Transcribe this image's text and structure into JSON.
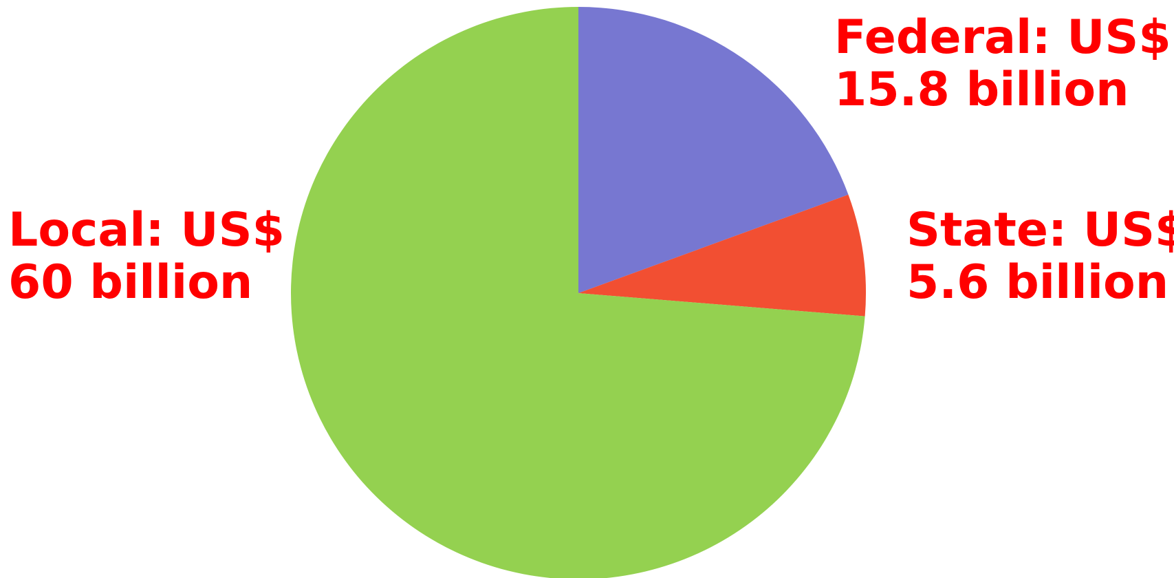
{
  "chart_data": {
    "type": "pie",
    "title": "",
    "unit": "US$ billion",
    "start": "12 o'clock",
    "direction": "clockwise",
    "slices": [
      {
        "category": "Federal",
        "value": 15.8,
        "color": "#7777d1",
        "label_lines": [
          "Federal: US$",
          "15.8 billion"
        ]
      },
      {
        "category": "State",
        "value": 5.6,
        "color": "#f24f32",
        "label_lines": [
          "State: US$",
          "5.6 billion"
        ]
      },
      {
        "category": "Local",
        "value": 60,
        "color": "#94d150",
        "label_lines": [
          "Local: US$",
          "60 billion"
        ]
      }
    ],
    "label_color": "#ff0000"
  }
}
